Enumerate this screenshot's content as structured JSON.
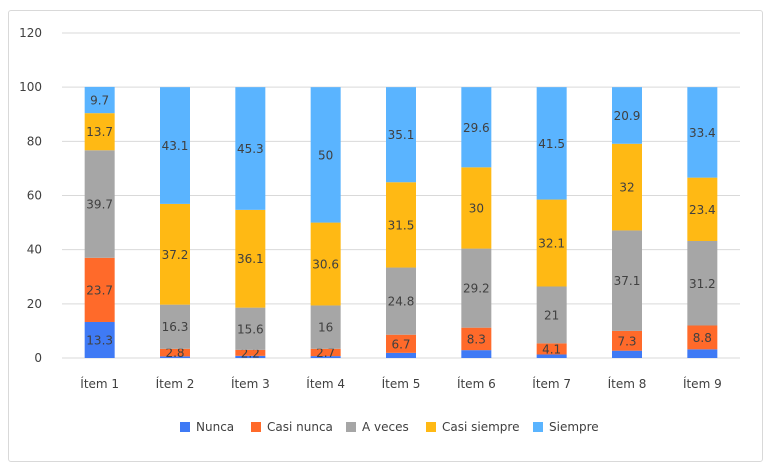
{
  "chart_data": {
    "type": "bar",
    "stacked": true,
    "title": "",
    "xlabel": "",
    "ylabel": "",
    "ylim": [
      0,
      120
    ],
    "yticks": [
      0,
      20,
      40,
      60,
      80,
      100,
      120
    ],
    "grid": true,
    "legend_position": "bottom",
    "categories": [
      "Ítem 1",
      "Ítem 2",
      "Ítem 3",
      "Ítem 4",
      "Ítem 5",
      "Ítem 6",
      "Ítem 7",
      "Ítem 8",
      "Ítem 9"
    ],
    "series": [
      {
        "name": "Nunca",
        "color": "#3f7af5",
        "values": [
          13.3,
          0.6,
          0.8,
          0.7,
          1.9,
          2.9,
          1.3,
          2.7,
          3.2
        ],
        "labels": [
          "13.3",
          null,
          null,
          null,
          null,
          null,
          null,
          null,
          null
        ]
      },
      {
        "name": "Casi nunca",
        "color": "#ff6a2a",
        "values": [
          23.7,
          2.8,
          2.2,
          2.7,
          6.7,
          8.3,
          4.1,
          7.3,
          8.8
        ],
        "labels": [
          "23.7",
          "2.8",
          "2.2",
          "2.7",
          "6.7",
          "8.3",
          "4.1",
          "7.3",
          "8.8"
        ]
      },
      {
        "name": "A veces",
        "color": "#a6a6a6",
        "values": [
          39.7,
          16.3,
          15.6,
          16,
          24.8,
          29.2,
          21,
          37.1,
          31.2
        ],
        "labels": [
          "39.7",
          "16.3",
          "15.6",
          "16",
          "24.8",
          "29.2",
          "21",
          "37.1",
          "31.2"
        ]
      },
      {
        "name": "Casi siempre",
        "color": "#ffb914",
        "values": [
          13.7,
          37.2,
          36.1,
          30.6,
          31.5,
          30,
          32.1,
          32,
          23.4
        ],
        "labels": [
          "13.7",
          "37.2",
          "36.1",
          "30.6",
          "31.5",
          "30",
          "32.1",
          "32",
          "23.4"
        ]
      },
      {
        "name": "Siempre",
        "color": "#5ab4ff",
        "values": [
          9.7,
          43.1,
          45.3,
          50,
          35.1,
          29.6,
          41.5,
          20.9,
          33.4
        ],
        "labels": [
          "9.7",
          "43.1",
          "45.3",
          "50",
          "35.1",
          "29.6",
          "41.5",
          "20.9",
          "33.4"
        ]
      }
    ]
  }
}
